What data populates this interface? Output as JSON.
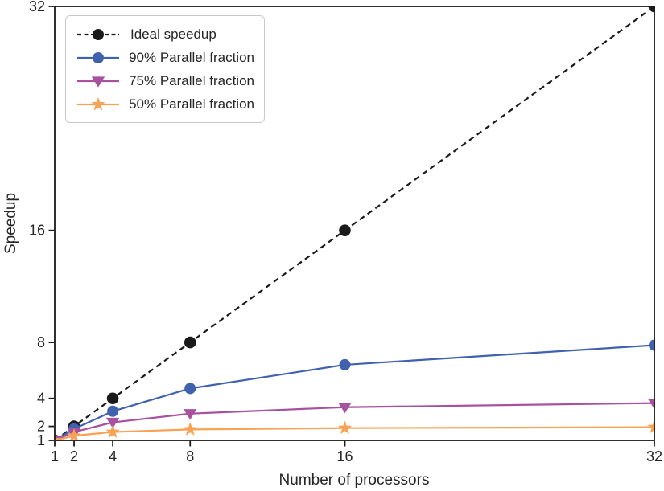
{
  "chart_data": {
    "type": "line",
    "title": "",
    "xlabel": "Number of processors",
    "ylabel": "Speedup",
    "xlim": [
      1,
      32
    ],
    "ylim": [
      1,
      32
    ],
    "x": [
      1,
      2,
      4,
      8,
      16,
      32
    ],
    "x_tick_labels": [
      "1",
      "2",
      "4",
      "8",
      "16",
      "32"
    ],
    "y_ticks": [
      1,
      2,
      4,
      8,
      16,
      32
    ],
    "y_tick_labels": [
      "1",
      "2",
      "4",
      "8",
      "16",
      "32"
    ],
    "grid": false,
    "legend_position": "upper left",
    "series": [
      {
        "name": "Ideal speedup",
        "values": [
          1,
          2,
          4,
          8,
          16,
          32
        ],
        "color": "#1a1a1a",
        "line_style": "dashed",
        "marker": "circle"
      },
      {
        "name": "90% Parallel fraction",
        "values": [
          1,
          1.82,
          3.08,
          4.71,
          6.4,
          7.8
        ],
        "color": "#4061ad",
        "line_style": "solid",
        "marker": "circle"
      },
      {
        "name": "75% Parallel fraction",
        "values": [
          1,
          1.6,
          2.29,
          2.91,
          3.37,
          3.66
        ],
        "color": "#a8519e",
        "line_style": "solid",
        "marker": "triangle-down"
      },
      {
        "name": "50% Parallel fraction",
        "values": [
          1,
          1.33,
          1.6,
          1.78,
          1.88,
          1.94
        ],
        "color": "#f7a254",
        "line_style": "solid",
        "marker": "star"
      }
    ],
    "colors": {
      "axis": "#1a1a1a",
      "text": "#262626",
      "legend_border": "#c9c9c9",
      "background": "#ffffff"
    }
  }
}
